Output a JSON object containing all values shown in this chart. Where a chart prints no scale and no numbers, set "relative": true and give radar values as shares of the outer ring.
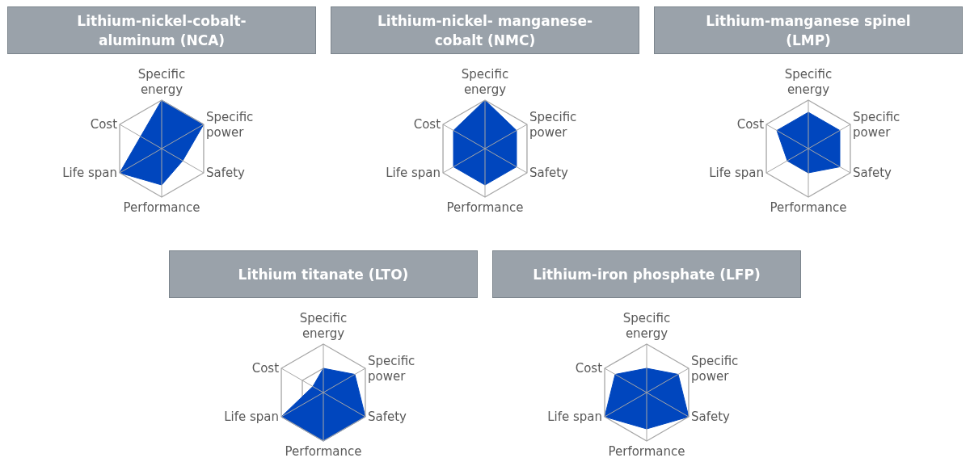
{
  "chart_data": [
    {
      "type": "radar",
      "title": "Lithium-nickel-cobalt-aluminum (NCA)",
      "categories": [
        "Specific energy",
        "Specific power",
        "Safety",
        "Performance",
        "Life span",
        "Cost"
      ],
      "series": [
        {
          "color": "#0046be",
          "values": [
            1,
            1,
            0.5,
            0.75,
            1,
            0.5
          ]
        }
      ],
      "relative": true,
      "grid": true
    },
    {
      "type": "radar",
      "title": "Lithium-nickel- manganese-cobalt (NMC)",
      "categories": [
        "Specific energy",
        "Specific power",
        "Safety",
        "Performance",
        "Life span",
        "Cost"
      ],
      "series": [
        {
          "color": "#0046be",
          "values": [
            1,
            0.75,
            0.75,
            0.75,
            0.75,
            0.75
          ]
        }
      ],
      "relative": true,
      "grid": true
    },
    {
      "type": "radar",
      "title": "Lithium-manganese spinel (LMP)",
      "categories": [
        "Specific energy",
        "Specific power",
        "Safety",
        "Performance",
        "Life span",
        "Cost"
      ],
      "series": [
        {
          "color": "#0046be",
          "values": [
            0.75,
            0.75,
            0.75,
            0.5,
            0.5,
            0.75
          ]
        }
      ],
      "relative": true,
      "grid": true
    },
    {
      "type": "radar",
      "title": "Lithium titanate (LTO)",
      "categories": [
        "Specific energy",
        "Specific power",
        "Safety",
        "Performance",
        "Life span",
        "Cost"
      ],
      "series": [
        {
          "color": "#0046be",
          "values": [
            0.5,
            0.75,
            1,
            1,
            1,
            0.25
          ]
        }
      ],
      "relative": true,
      "grid": true
    },
    {
      "type": "radar",
      "title": "Lithium-iron phosphate (LFP)",
      "categories": [
        "Specific energy",
        "Specific power",
        "Safety",
        "Performance",
        "Life span",
        "Cost"
      ],
      "series": [
        {
          "color": "#0046be",
          "values": [
            0.5,
            0.75,
            1,
            0.75,
            1,
            0.75
          ]
        }
      ],
      "relative": true,
      "grid": true
    }
  ]
}
